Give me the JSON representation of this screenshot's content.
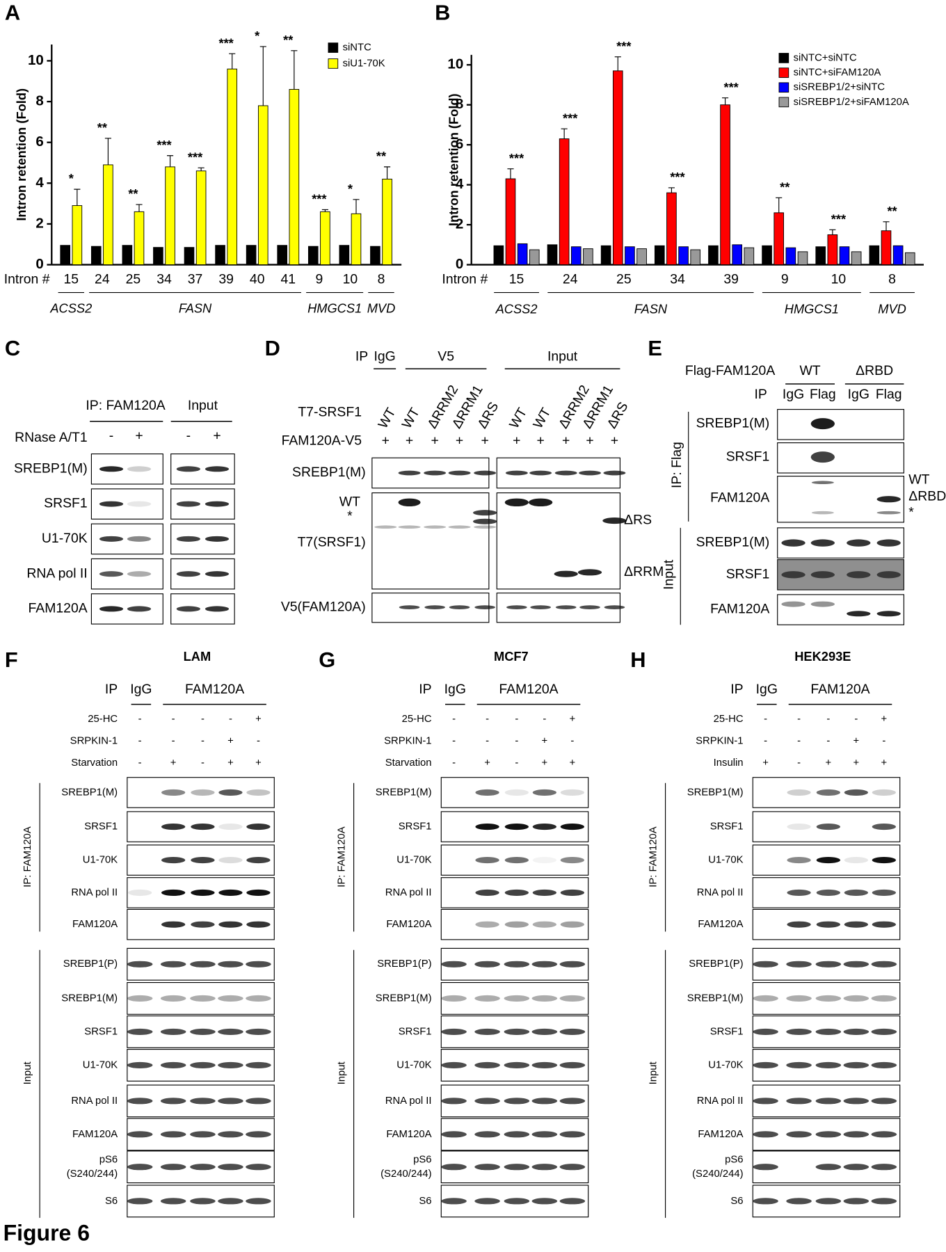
{
  "figure_title": "Figure 6",
  "chart_data": [
    {
      "type": "bar",
      "letter": "A",
      "ylabel": "Intron retention  (Fold)",
      "xlabel": "Intron #",
      "categories": [
        "15",
        "24",
        "25",
        "34",
        "37",
        "39",
        "40",
        "41",
        "9",
        "10",
        "8"
      ],
      "gene_groups": [
        {
          "name": "ACSS2",
          "categories": [
            "15"
          ]
        },
        {
          "name": "FASN",
          "categories": [
            "24",
            "25",
            "34",
            "37",
            "39",
            "40",
            "41"
          ]
        },
        {
          "name": "HMGCS1",
          "categories": [
            "9",
            "10"
          ]
        },
        {
          "name": "MVD",
          "categories": [
            "8"
          ]
        }
      ],
      "series": [
        {
          "name": "siNTC",
          "color": "#000000",
          "values": [
            0.95,
            0.9,
            0.95,
            0.85,
            0.85,
            0.95,
            0.95,
            0.95,
            0.9,
            0.95,
            0.9
          ]
        },
        {
          "name": "siU1-70K",
          "color": "#ffff00",
          "values": [
            2.9,
            4.9,
            2.6,
            4.8,
            4.6,
            9.6,
            7.8,
            8.6,
            2.6,
            2.5,
            4.2
          ],
          "errors": [
            0.8,
            1.3,
            0.35,
            0.55,
            0.15,
            0.75,
            2.9,
            1.9,
            0.1,
            0.7,
            0.6
          ]
        }
      ],
      "significance": [
        "*",
        "**",
        "**",
        "***",
        "***",
        "***",
        "*",
        "**",
        "***",
        "*",
        "**"
      ],
      "ylim": [
        0,
        10.8
      ],
      "yticks": [
        0,
        2,
        4,
        6,
        8,
        10
      ]
    },
    {
      "type": "bar",
      "letter": "B",
      "ylabel": "Intron retention  (Fold)",
      "xlabel": "Intron #",
      "categories": [
        "15",
        "24",
        "25",
        "34",
        "39",
        "9",
        "10",
        "8"
      ],
      "gene_groups": [
        {
          "name": "ACSS2",
          "categories": [
            "15"
          ]
        },
        {
          "name": "FASN",
          "categories": [
            "24",
            "25",
            "34",
            "39"
          ]
        },
        {
          "name": "HMGCS1",
          "categories": [
            "9",
            "10"
          ]
        },
        {
          "name": "MVD",
          "categories": [
            "8"
          ]
        }
      ],
      "series": [
        {
          "name": "siNTC+siNTC",
          "color": "#000000",
          "values": [
            0.95,
            1.0,
            0.95,
            0.95,
            0.95,
            0.95,
            0.9,
            0.95
          ]
        },
        {
          "name": "siNTC+siFAM120A",
          "color": "#ff0000",
          "values": [
            4.3,
            6.3,
            9.7,
            3.6,
            8.0,
            2.6,
            1.5,
            1.7
          ],
          "errors": [
            0.5,
            0.5,
            0.7,
            0.25,
            0.35,
            0.75,
            0.25,
            0.45
          ]
        },
        {
          "name": "siSREBP1/2+siNTC",
          "color": "#0000ff",
          "values": [
            1.05,
            0.9,
            0.9,
            0.9,
            1.0,
            0.85,
            0.9,
            0.95
          ]
        },
        {
          "name": "siSREBP1/2+siFAM120A",
          "color": "#999999",
          "values": [
            0.75,
            0.8,
            0.8,
            0.75,
            0.85,
            0.65,
            0.65,
            0.6
          ]
        }
      ],
      "significance": [
        "***",
        "***",
        "***",
        "***",
        "***",
        "**",
        "***",
        "**"
      ],
      "ylim": [
        0,
        10.5
      ],
      "yticks": [
        0,
        2,
        4,
        6,
        8,
        10
      ]
    }
  ],
  "panels": {
    "C": {
      "letter": "C",
      "ip_header": "IP: FAM120A",
      "input_header": "Input",
      "treatment": "RNase A/T1",
      "signs": [
        "-",
        "+",
        "-",
        "+"
      ],
      "rows": [
        "SREBP1(M)",
        "SRSF1",
        "U1-70K",
        "RNA pol II",
        "FAM120A"
      ]
    },
    "D": {
      "letter": "D",
      "ip": "IP",
      "groups": [
        "IgG",
        "V5",
        "Input"
      ],
      "construct": "T7-SRSF1",
      "lanes": [
        "WT",
        "WT",
        "ΔRRM2",
        "ΔRRM1",
        "ΔRS",
        "WT",
        "WT",
        "ΔRRM2",
        "ΔRRM1",
        "ΔRS"
      ],
      "fusion": "FAM120A-V5",
      "fusion_signs": [
        "+",
        "+",
        "+",
        "+",
        "+",
        "+",
        "+",
        "+",
        "+",
        "+"
      ],
      "rows": [
        "SREBP1(M)",
        "T7(SRSF1)",
        "V5(FAM120A)"
      ],
      "band_labels": [
        "WT",
        "*"
      ],
      "side_labels": [
        "ΔRS",
        "ΔRRM"
      ]
    },
    "E": {
      "letter": "E",
      "construct": "Flag-FAM120A",
      "groups": [
        "WT",
        "ΔRBD"
      ],
      "ip": "IP",
      "lanes": [
        "IgG",
        "Flag",
        "IgG",
        "Flag"
      ],
      "ip_section": "IP: Flag",
      "ip_rows": [
        "SREBP1(M)",
        "SRSF1",
        "FAM120A"
      ],
      "side_labels": [
        "WT",
        "ΔRBD",
        "*"
      ],
      "input_section": "Input",
      "input_rows": [
        "SREBP1(M)",
        "SRSF1",
        "FAM120A"
      ]
    },
    "F": {
      "letter": "F",
      "title": "LAM",
      "ip": "IP",
      "groups": [
        "IgG",
        "FAM120A"
      ],
      "treatments": [
        {
          "name": "25-HC",
          "signs": [
            "-",
            "-",
            "-",
            "-",
            "+"
          ]
        },
        {
          "name": "SRPKIN-1",
          "signs": [
            "-",
            "-",
            "-",
            "+",
            "-"
          ]
        },
        {
          "name": "Starvation",
          "signs": [
            "-",
            "+",
            "-",
            "+",
            "+"
          ]
        }
      ],
      "ip_section": "IP: FAM120A",
      "ip_rows": [
        "SREBP1(M)",
        "SRSF1",
        "U1-70K",
        "RNA pol II",
        "FAM120A"
      ],
      "input_section": "Input",
      "input_rows": [
        "SREBP1(P)",
        "SREBP1(M)",
        "SRSF1",
        "U1-70K",
        "RNA pol II",
        "FAM120A",
        [
          "pS6",
          "(S240/244)"
        ],
        "S6"
      ]
    },
    "G": {
      "letter": "G",
      "title": "MCF7",
      "ip": "IP",
      "groups": [
        "IgG",
        "FAM120A"
      ],
      "treatments": [
        {
          "name": "25-HC",
          "signs": [
            "-",
            "-",
            "-",
            "-",
            "+"
          ]
        },
        {
          "name": "SRPKIN-1",
          "signs": [
            "-",
            "-",
            "-",
            "+",
            "-"
          ]
        },
        {
          "name": "Starvation",
          "signs": [
            "-",
            "+",
            "-",
            "+",
            "+"
          ]
        }
      ],
      "ip_section": "IP: FAM120A",
      "ip_rows": [
        "SREBP1(M)",
        "SRSF1",
        "U1-70K",
        "RNA pol II",
        "FAM120A"
      ],
      "input_section": "Input",
      "input_rows": [
        "SREBP1(P)",
        "SREBP1(M)",
        "SRSF1",
        "U1-70K",
        "RNA pol II",
        "FAM120A",
        [
          "pS6",
          "(S240/244)"
        ],
        "S6"
      ]
    },
    "H": {
      "letter": "H",
      "title": "HEK293E",
      "ip": "IP",
      "groups": [
        "IgG",
        "FAM120A"
      ],
      "treatments": [
        {
          "name": "25-HC",
          "signs": [
            "-",
            "-",
            "-",
            "-",
            "+"
          ]
        },
        {
          "name": "SRPKIN-1",
          "signs": [
            "-",
            "-",
            "-",
            "+",
            "-"
          ]
        },
        {
          "name": "Insulin",
          "signs": [
            "+",
            "-",
            "+",
            "+",
            "+"
          ]
        }
      ],
      "ip_section": "IP: FAM120A",
      "ip_rows": [
        "SREBP1(M)",
        "SRSF1",
        "U1-70K",
        "RNA pol II",
        "FAM120A"
      ],
      "input_section": "Input",
      "input_rows": [
        "SREBP1(P)",
        "SREBP1(M)",
        "SRSF1",
        "U1-70K",
        "RNA pol II",
        "FAM120A",
        [
          "pS6",
          "(S240/244)"
        ],
        "S6"
      ]
    }
  }
}
